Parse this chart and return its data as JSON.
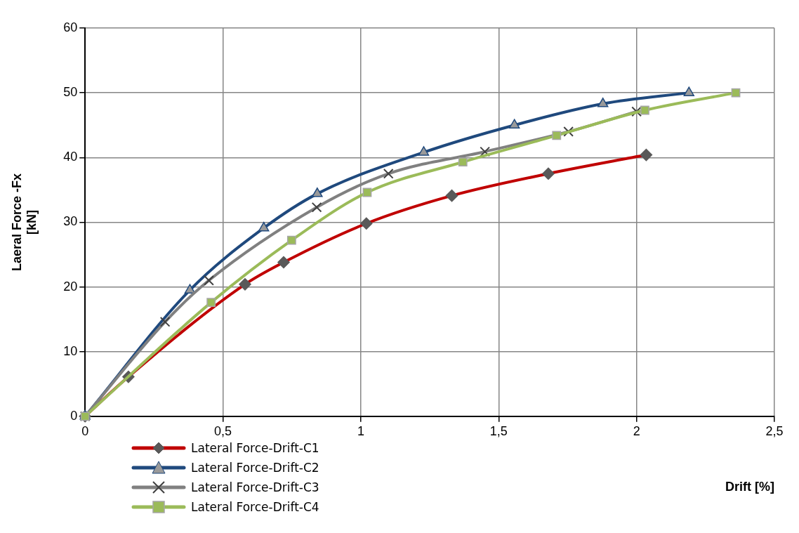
{
  "chart_data": {
    "type": "line",
    "xlabel": "Drift [%]",
    "ylabel": "Laeral Force -Fx\n[kN]",
    "xlim": [
      0,
      2.5
    ],
    "xticks": [
      0,
      {
        "value": 0.5,
        "label": "0,5"
      },
      1,
      {
        "value": 1.5,
        "label": "1,5"
      },
      2,
      {
        "value": 2.5,
        "label": "2,5"
      }
    ],
    "ylim": [
      0,
      60
    ],
    "yticks": [
      0,
      10,
      20,
      30,
      40,
      50,
      60
    ],
    "grid": true,
    "legend": "bottom left",
    "line_style": "solid",
    "series": [
      {
        "name": "Lateral Force-Drift-C1",
        "color": "#c00000",
        "marker": "diamond",
        "x": [
          0,
          0.157,
          0.58,
          0.72,
          1.02,
          1.33,
          1.68,
          2.035
        ],
        "values": [
          0,
          6.1,
          20.4,
          23.8,
          29.8,
          34.1,
          37.5,
          40.4
        ]
      },
      {
        "name": "Lateral Force-Drift-C2",
        "color": "#1f497d",
        "marker": "triangle",
        "x": [
          0,
          0.38,
          0.648,
          0.842,
          1.228,
          1.557,
          1.878,
          2.19
        ],
        "values": [
          0,
          19.5,
          29.1,
          34.4,
          40.8,
          45.0,
          48.3,
          50.0
        ]
      },
      {
        "name": "Lateral Force-Drift-C3",
        "color": "#808080",
        "marker": "cross",
        "x": [
          0,
          0.29,
          0.449,
          0.84,
          1.1,
          1.45,
          1.753,
          2.0
        ],
        "values": [
          0,
          14.6,
          21.0,
          32.3,
          37.5,
          40.9,
          44.0,
          47.1
        ]
      },
      {
        "name": "Lateral Force-Drift-C4",
        "color": "#9bbb59",
        "marker": "square",
        "x": [
          0,
          0.457,
          0.749,
          1.023,
          1.37,
          1.71,
          2.03,
          2.36
        ],
        "values": [
          0,
          17.6,
          27.2,
          34.6,
          39.3,
          43.4,
          47.3,
          50.0
        ]
      }
    ]
  }
}
